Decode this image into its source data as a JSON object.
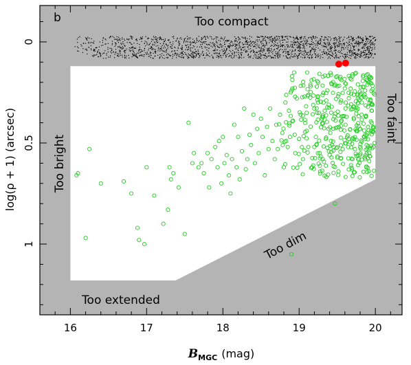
{
  "chart_data": {
    "type": "scatter",
    "panel_label": "b",
    "xlabel_main": "B",
    "xlabel_sub": "MGC",
    "xlabel_unit": "(mag)",
    "ylabel": "log(ρ + 1) (arcsec)",
    "xlim": [
      15.6,
      20.35
    ],
    "ylim": [
      1.35,
      -0.18
    ],
    "y_inverted": true,
    "grid": false,
    "x_ticks": [
      16,
      17,
      18,
      19,
      20
    ],
    "x_tick_labels": [
      "16",
      "17",
      "18",
      "19",
      "20"
    ],
    "y_ticks": [
      0,
      0.5,
      1
    ],
    "y_tick_labels": [
      "0",
      "0.5",
      "1"
    ],
    "colors": {
      "background": "#b4b4b4",
      "selection_region": "#ffffff",
      "compact_points": "#000000",
      "galaxy_points": "#22cc22",
      "highlight_points": "#ff0000"
    },
    "selection_region_vertices": [
      [
        16.0,
        0.12
      ],
      [
        20.0,
        0.12
      ],
      [
        20.0,
        0.68
      ],
      [
        17.38,
        1.18
      ],
      [
        16.0,
        1.18
      ]
    ],
    "region_labels": {
      "top": "Too compact",
      "right": "Too faint",
      "left": "Too bright",
      "bottom_diagonal": "Too dim",
      "bottom": "Too extended"
    },
    "series": [
      {
        "marker": "dot",
        "color": "#000000",
        "x_range": [
          16.05,
          20.0
        ],
        "y_band": [
          -0.03,
          0.08
        ],
        "approx_count": 1900
      },
      {
        "marker": "open-circle",
        "color": "#22cc22",
        "points": [
          [
            16.08,
            0.66
          ],
          [
            16.1,
            0.65
          ],
          [
            16.2,
            0.97
          ],
          [
            16.25,
            0.53
          ],
          [
            16.4,
            0.7
          ],
          [
            16.7,
            0.69
          ],
          [
            16.8,
            0.75
          ],
          [
            16.88,
            0.92
          ],
          [
            16.9,
            0.98
          ],
          [
            16.97,
            1.0
          ],
          [
            17.0,
            0.62
          ],
          [
            17.1,
            0.76
          ],
          [
            17.22,
            0.9
          ],
          [
            17.28,
            0.83
          ],
          [
            17.3,
            0.62
          ],
          [
            17.32,
            0.68
          ],
          [
            17.35,
            0.65
          ],
          [
            17.42,
            0.72
          ],
          [
            17.5,
            0.95
          ],
          [
            17.55,
            0.4
          ],
          [
            17.6,
            0.6
          ],
          [
            17.62,
            0.55
          ],
          [
            17.68,
            0.62
          ],
          [
            17.72,
            0.6
          ],
          [
            17.75,
            0.65
          ],
          [
            17.8,
            0.55
          ],
          [
            17.82,
            0.72
          ],
          [
            17.85,
            0.58
          ],
          [
            17.9,
            0.52
          ],
          [
            17.93,
            0.62
          ],
          [
            17.95,
            0.49
          ],
          [
            17.98,
            0.7
          ],
          [
            18.0,
            0.47
          ],
          [
            18.02,
            0.6
          ],
          [
            18.05,
            0.56
          ],
          [
            18.08,
            0.66
          ],
          [
            18.1,
            0.75
          ],
          [
            18.12,
            0.58
          ],
          [
            18.15,
            0.41
          ],
          [
            18.18,
            0.62
          ],
          [
            18.2,
            0.47
          ],
          [
            18.22,
            0.68
          ],
          [
            18.25,
            0.54
          ],
          [
            18.28,
            0.33
          ],
          [
            18.3,
            0.63
          ],
          [
            18.32,
            0.58
          ],
          [
            18.35,
            0.46
          ],
          [
            18.37,
            0.51
          ],
          [
            18.4,
            0.36
          ],
          [
            18.42,
            0.6
          ],
          [
            18.45,
            0.43
          ],
          [
            18.47,
            0.55
          ],
          [
            18.5,
            0.38
          ],
          [
            18.52,
            0.47
          ],
          [
            18.55,
            0.66
          ],
          [
            18.58,
            0.42
          ],
          [
            18.6,
            0.53
          ],
          [
            18.62,
            0.33
          ],
          [
            18.65,
            0.49
          ],
          [
            18.68,
            0.58
          ],
          [
            18.7,
            0.41
          ],
          [
            18.72,
            0.53
          ],
          [
            18.75,
            0.36
          ],
          [
            18.78,
            0.45
          ],
          [
            18.8,
            0.62
          ],
          [
            18.82,
            0.3
          ],
          [
            18.85,
            0.52
          ],
          [
            18.88,
            0.47
          ],
          [
            18.9,
            1.05
          ],
          [
            18.92,
            0.39
          ],
          [
            18.95,
            0.55
          ],
          [
            18.97,
            0.28
          ],
          [
            19.0,
            0.48
          ],
          [
            19.02,
            0.36
          ],
          [
            19.05,
            0.58
          ],
          [
            19.07,
            0.27
          ],
          [
            19.1,
            0.44
          ],
          [
            19.12,
            0.52
          ],
          [
            19.15,
            0.22
          ],
          [
            19.17,
            0.62
          ],
          [
            19.2,
            0.33
          ],
          [
            19.22,
            0.47
          ],
          [
            19.25,
            0.2
          ],
          [
            19.27,
            0.55
          ],
          [
            19.3,
            0.38
          ],
          [
            19.32,
            0.3
          ],
          [
            19.35,
            0.48
          ],
          [
            19.37,
            0.24
          ],
          [
            19.4,
            0.56
          ],
          [
            19.42,
            0.35
          ],
          [
            19.45,
            0.43
          ],
          [
            19.47,
            0.8
          ],
          [
            19.5,
            0.17
          ],
          [
            19.52,
            0.42
          ],
          [
            19.55,
            0.29
          ],
          [
            19.57,
            0.53
          ],
          [
            19.6,
            0.23
          ],
          [
            19.62,
            0.37
          ],
          [
            19.65,
            0.48
          ],
          [
            19.67,
            0.18
          ],
          [
            19.7,
            0.58
          ],
          [
            19.72,
            0.32
          ],
          [
            19.75,
            0.44
          ],
          [
            19.77,
            0.21
          ],
          [
            19.8,
            0.52
          ],
          [
            19.82,
            0.36
          ],
          [
            19.85,
            0.27
          ],
          [
            19.87,
            0.46
          ],
          [
            19.9,
            0.16
          ],
          [
            19.92,
            0.55
          ],
          [
            19.95,
            0.34
          ],
          [
            19.97,
            0.42
          ],
          [
            19.99,
            0.26
          ],
          [
            19.99,
            0.5
          ]
        ]
      },
      {
        "marker": "filled-circle",
        "color": "#ff0000",
        "points": [
          [
            19.52,
            0.11
          ],
          [
            19.61,
            0.105
          ]
        ]
      }
    ]
  }
}
